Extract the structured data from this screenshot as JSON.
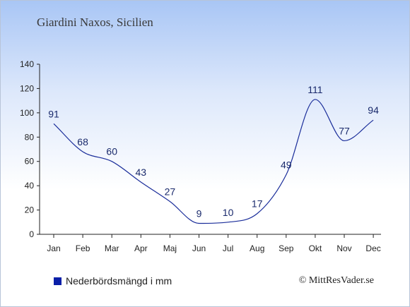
{
  "title": "Giardini Naxos, Sicilien",
  "legend_label": "Nederbördsmängd i mm",
  "copyright": "© MittResVader.se",
  "colors": {
    "line": "#1a2d9a",
    "legend_swatch": "#0a1fa8",
    "axis": "#222222",
    "label": "#1a2a6c"
  },
  "chart_data": {
    "type": "line",
    "categories": [
      "Jan",
      "Feb",
      "Mar",
      "Apr",
      "Maj",
      "Jun",
      "Jul",
      "Aug",
      "Sep",
      "Okt",
      "Nov",
      "Dec"
    ],
    "series": [
      {
        "name": "Nederbördsmängd i mm",
        "values": [
          91,
          68,
          60,
          43,
          27,
          9,
          10,
          17,
          49,
          111,
          77,
          94
        ]
      }
    ],
    "ylim": [
      0,
      140
    ],
    "yticks": [
      0,
      20,
      40,
      60,
      80,
      100,
      120,
      140
    ],
    "grid": false,
    "legend": "bottom-left"
  }
}
